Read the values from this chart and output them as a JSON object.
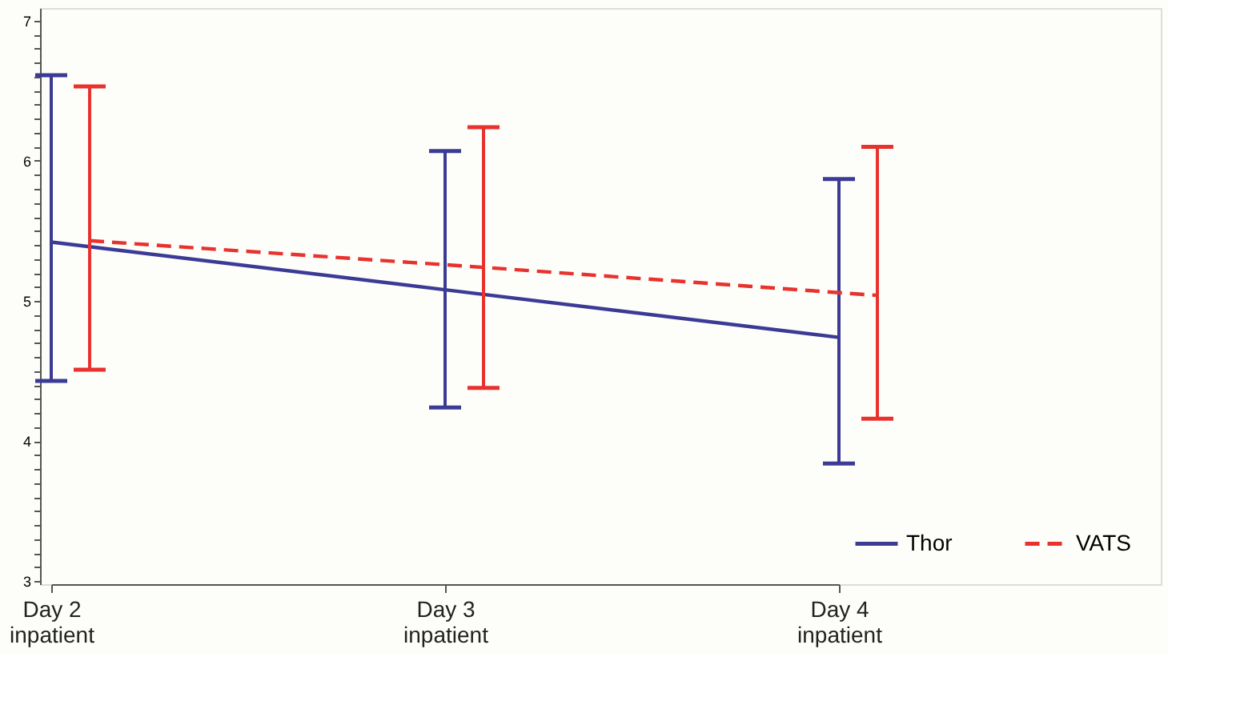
{
  "chart_data": {
    "type": "line",
    "categories": [
      "Day 2\ninpatient",
      "Day 3\ninpatient",
      "Day 4\ninpatient"
    ],
    "series": [
      {
        "name": "Thor",
        "color": "#3b3b96",
        "line_style": "solid",
        "values": [
          5.42,
          5.08,
          4.74
        ],
        "errors": [
          [
            4.43,
            6.61
          ],
          [
            4.24,
            6.07
          ],
          [
            3.84,
            5.87
          ]
        ]
      },
      {
        "name": "VATS",
        "color": "#e8322e",
        "line_style": "dashed",
        "values": [
          5.43,
          5.24,
          5.04
        ],
        "errors": [
          [
            4.51,
            6.53
          ],
          [
            4.38,
            6.24
          ],
          [
            4.16,
            6.1
          ]
        ]
      }
    ],
    "ylim": [
      2.98,
      7.09
    ],
    "yticks": [
      3,
      {
        "value": 3.1,
        "label": null
      },
      {
        "value": 3.2,
        "label": null
      },
      {
        "value": 3.3,
        "label": null
      },
      {
        "value": 3.4,
        "label": null
      },
      {
        "value": 3.5,
        "label": null
      },
      {
        "value": 3.6,
        "label": null
      },
      {
        "value": 3.7,
        "label": null
      },
      {
        "value": 3.8,
        "label": null
      },
      {
        "value": 3.9,
        "label": null
      },
      4,
      {
        "value": 4.1,
        "label": null
      },
      {
        "value": 4.2,
        "label": null
      },
      {
        "value": 4.3,
        "label": null
      },
      {
        "value": 4.4,
        "label": null
      },
      {
        "value": 4.5,
        "label": null
      },
      {
        "value": 4.6,
        "label": null
      },
      {
        "value": 4.7,
        "label": null
      },
      {
        "value": 4.8,
        "label": null
      },
      {
        "value": 4.9,
        "label": null
      },
      5,
      {
        "value": 5.1,
        "label": null
      },
      {
        "value": 5.2,
        "label": null
      },
      {
        "value": 5.3,
        "label": null
      },
      {
        "value": 5.4,
        "label": null
      },
      {
        "value": 5.5,
        "label": null
      },
      {
        "value": 5.6,
        "label": null
      },
      {
        "value": 5.7,
        "label": null
      },
      {
        "value": 5.8,
        "label": null
      },
      {
        "value": 5.9,
        "label": null
      },
      6,
      {
        "value": 6.1,
        "label": null
      },
      {
        "value": 6.2,
        "label": null
      },
      {
        "value": 6.3,
        "label": null
      },
      {
        "value": 6.4,
        "label": null
      },
      {
        "value": 6.5,
        "label": null
      },
      {
        "value": 6.6,
        "label": null
      },
      {
        "value": 6.7,
        "label": null
      },
      {
        "value": 6.8,
        "label": null
      },
      {
        "value": 6.9,
        "label": null
      },
      7
    ],
    "grid": false,
    "legend": "bottom right",
    "marker": "none"
  }
}
